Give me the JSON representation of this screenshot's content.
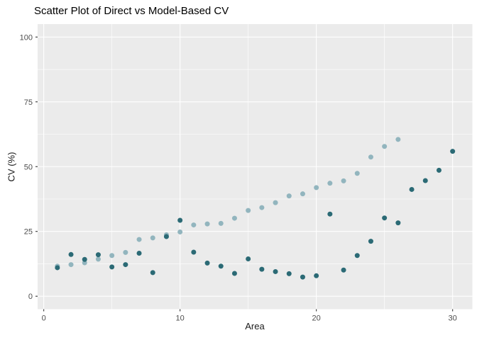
{
  "title": "Scatter Plot of Direct vs Model-Based CV",
  "axes": {
    "x": {
      "label": "Area",
      "major_ticks": [
        0,
        10,
        20,
        30
      ],
      "minor_ticks": [
        5,
        15,
        25
      ],
      "domain": [
        -0.45,
        31.45
      ]
    },
    "y": {
      "label": "CV (%)",
      "major_ticks": [
        0,
        25,
        50,
        75,
        100
      ],
      "minor_ticks": [
        12.5,
        37.5,
        62.5,
        87.5
      ],
      "domain": [
        -5,
        105
      ]
    }
  },
  "style": {
    "panel_bg": "#ebebeb",
    "grid_color": "#ffffff",
    "tick_color": "#333333",
    "tick_label_color": "#4d4d4d",
    "light_point_color": "#92b5be",
    "dark_point_color": "#2b6a75"
  },
  "chart_data": {
    "type": "scatter",
    "title": "Scatter Plot of Direct vs Model-Based CV",
    "xlabel": "Area",
    "ylabel": "CV (%)",
    "xlim": [
      0,
      30
    ],
    "ylim": [
      0,
      100
    ],
    "grid": true,
    "legend_position": "none",
    "series": [
      {
        "name": "model-based-cv-light-teal",
        "color": "#92b5be",
        "points": [
          [
            1,
            11.6
          ],
          [
            2,
            12.2
          ],
          [
            3,
            12.9
          ],
          [
            4,
            14.3
          ],
          [
            5,
            15.7
          ],
          [
            6,
            16.9
          ],
          [
            7,
            21.9
          ],
          [
            8,
            22.5
          ],
          [
            9,
            23.7
          ],
          [
            10,
            24.8
          ],
          [
            11,
            27.5
          ],
          [
            12,
            27.9
          ],
          [
            13,
            28.1
          ],
          [
            14,
            30.1
          ],
          [
            15,
            33.1
          ],
          [
            16,
            34.2
          ],
          [
            17,
            36.1
          ],
          [
            18,
            38.7
          ],
          [
            19,
            39.5
          ],
          [
            20,
            41.9
          ],
          [
            21,
            43.6
          ],
          [
            22,
            44.5
          ],
          [
            23,
            47.4
          ],
          [
            24,
            53.7
          ],
          [
            25,
            57.8
          ],
          [
            26,
            60.5
          ]
        ]
      },
      {
        "name": "direct-cv-dark-teal",
        "color": "#2b6a75",
        "points": [
          [
            1,
            11.0
          ],
          [
            2,
            16.1
          ],
          [
            3,
            14.2
          ],
          [
            4,
            16.0
          ],
          [
            5,
            11.3
          ],
          [
            6,
            12.2
          ],
          [
            7,
            16.6
          ],
          [
            8,
            9.1
          ],
          [
            9,
            23.0
          ],
          [
            10,
            29.3
          ],
          [
            11,
            17.0
          ],
          [
            12,
            12.8
          ],
          [
            13,
            11.6
          ],
          [
            14,
            8.8
          ],
          [
            15,
            14.4
          ],
          [
            16,
            10.4
          ],
          [
            17,
            9.5
          ],
          [
            18,
            8.7
          ],
          [
            19,
            7.4
          ],
          [
            20,
            7.9
          ],
          [
            21,
            31.7
          ],
          [
            22,
            10.1
          ],
          [
            23,
            15.7
          ],
          [
            24,
            21.2
          ],
          [
            25,
            30.2
          ],
          [
            26,
            28.3
          ],
          [
            27,
            41.2
          ],
          [
            28,
            44.6
          ],
          [
            29,
            48.6
          ],
          [
            30,
            55.9
          ]
        ]
      }
    ]
  }
}
